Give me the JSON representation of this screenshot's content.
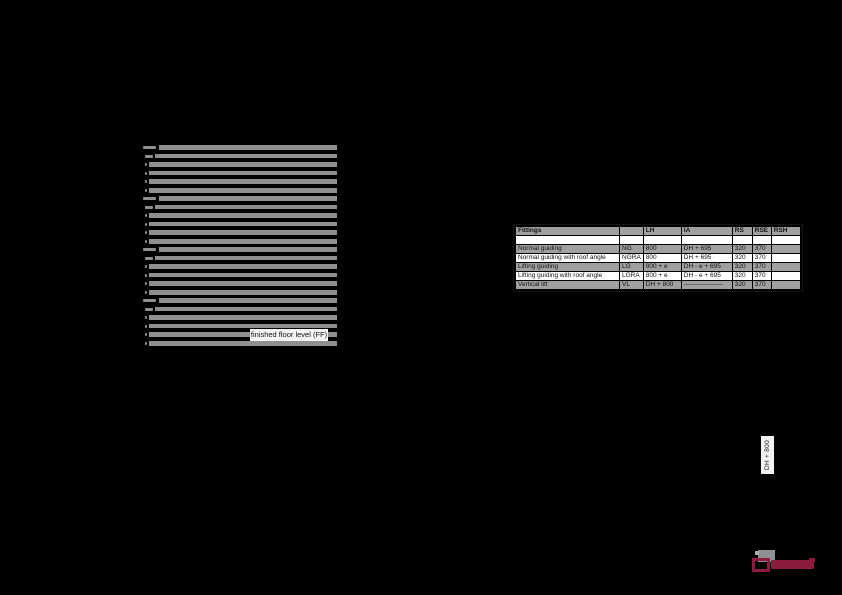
{
  "page": {
    "background": "#000000"
  },
  "colors": {
    "accent_maroon": "#8d1b3d",
    "table_shaded_row": "#a0a0a0",
    "redacted_bar_gray": "#8f8f8f"
  },
  "labels": {
    "finished_floor_level": "finished floor level (FF)",
    "vertical_dimension": "DH + 800"
  },
  "redacted_text": {
    "groups": 4,
    "lines_per_group": 6,
    "group_tops": [
      145,
      196,
      247,
      298
    ],
    "line_pitch": 8.6
  },
  "table": {
    "columns": [
      "Fittings",
      "",
      "LH",
      "IA",
      "RS",
      "RSE",
      "RSH"
    ],
    "rows": [
      {
        "cells": [
          "",
          "",
          "",
          "",
          "",
          "",
          ""
        ],
        "shaded": false
      },
      {
        "cells": [
          "Normal guiding",
          "NG",
          "800",
          "DH + 695",
          "320",
          "370",
          ""
        ],
        "shaded": true
      },
      {
        "cells": [
          "Normal guiding with roof angle",
          "NGRA",
          "800",
          "DH + 695",
          "320",
          "370",
          ""
        ],
        "shaded": false
      },
      {
        "cells": [
          "Lifting guiding",
          "LG",
          "800 + e",
          "DH - e + 695",
          "320",
          "370",
          ""
        ],
        "shaded": true
      },
      {
        "cells": [
          "Lifting guiding with roof angle",
          "LGRA",
          "800 + e",
          "DH - e + 695",
          "320",
          "370",
          ""
        ],
        "shaded": false
      },
      {
        "cells": [
          "Vertical lift",
          "VL",
          "DH + 800",
          "------------------",
          "320",
          "370",
          ""
        ],
        "shaded": true
      }
    ]
  },
  "logo": {
    "mark_icon": "door-panel-logo-icon",
    "wordmark": "brand-wordmark",
    "color": "#8d1b3d"
  }
}
